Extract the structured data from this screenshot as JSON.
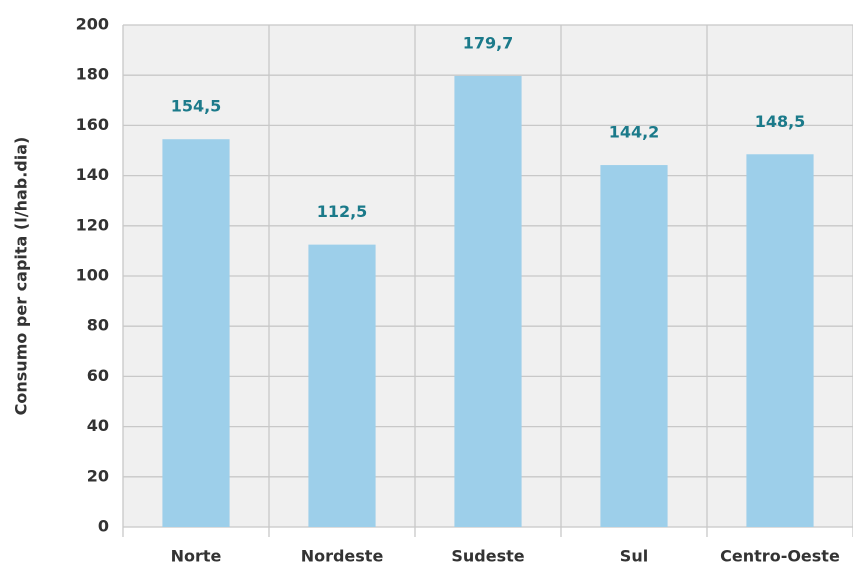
{
  "chart_data": {
    "type": "bar",
    "y_axis_label": "Consumo per capita (l/hab.dia)",
    "categories": [
      "Norte",
      "Nordeste",
      "Sudeste",
      "Sul",
      "Centro-Oeste"
    ],
    "values": [
      154.5,
      112.5,
      179.7,
      144.2,
      148.5
    ],
    "value_labels": [
      "154,5",
      "112,5",
      "179,7",
      "144,2",
      "148,5"
    ],
    "color": "#9dcfea",
    "label_color": "#1b7a8a",
    "ylim": [
      0,
      200
    ],
    "yticks": [
      0,
      20,
      40,
      60,
      80,
      100,
      120,
      140,
      160,
      180,
      200
    ],
    "grid": true
  }
}
